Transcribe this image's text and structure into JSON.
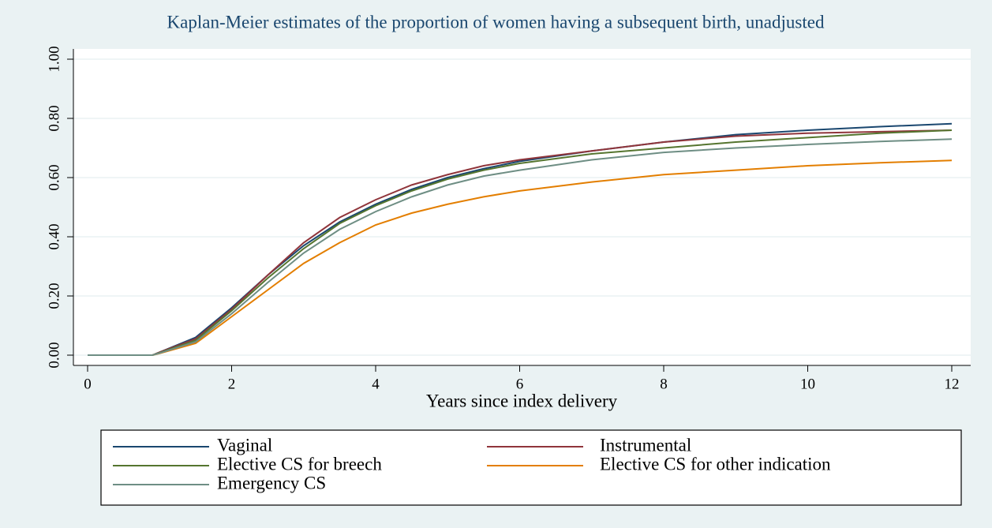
{
  "chart_data": {
    "type": "line",
    "title": "Kaplan-Meier estimates of the proportion of women having a subsequent birth, unadjusted",
    "x_label": "Years since index delivery",
    "x": [
      0,
      0.9,
      1,
      1.5,
      2,
      2.5,
      3,
      3.5,
      4,
      4.5,
      5,
      5.5,
      6,
      7,
      8,
      9,
      10,
      11,
      12
    ],
    "series": [
      {
        "name": "Vaginal",
        "color": "#1a476f",
        "values": [
          0,
          0,
          0.01,
          0.06,
          0.16,
          0.27,
          0.37,
          0.45,
          0.51,
          0.56,
          0.6,
          0.63,
          0.655,
          0.69,
          0.72,
          0.745,
          0.76,
          0.772,
          0.782
        ]
      },
      {
        "name": "Instrumental",
        "color": "#90353b",
        "values": [
          0,
          0,
          0.01,
          0.055,
          0.155,
          0.27,
          0.38,
          0.465,
          0.525,
          0.575,
          0.61,
          0.64,
          0.66,
          0.69,
          0.72,
          0.74,
          0.75,
          0.755,
          0.76
        ]
      },
      {
        "name": "Elective CS for breech",
        "color": "#55752f",
        "values": [
          0,
          0,
          0.008,
          0.05,
          0.15,
          0.26,
          0.36,
          0.445,
          0.505,
          0.555,
          0.595,
          0.625,
          0.648,
          0.68,
          0.7,
          0.72,
          0.735,
          0.75,
          0.76
        ]
      },
      {
        "name": "Elective CS for other indication",
        "color": "#e37e00",
        "values": [
          0,
          0,
          0.006,
          0.04,
          0.13,
          0.22,
          0.31,
          0.38,
          0.44,
          0.48,
          0.51,
          0.535,
          0.555,
          0.585,
          0.61,
          0.625,
          0.64,
          0.65,
          0.658
        ]
      },
      {
        "name": "Emergency CS",
        "color": "#6e8e84",
        "values": [
          0,
          0,
          0.007,
          0.045,
          0.14,
          0.245,
          0.345,
          0.425,
          0.485,
          0.535,
          0.575,
          0.605,
          0.625,
          0.66,
          0.685,
          0.7,
          0.712,
          0.722,
          0.73
        ]
      }
    ],
    "xlim": [
      0,
      12
    ],
    "xticks": [
      0,
      2,
      4,
      6,
      8,
      10,
      12
    ],
    "ylim": [
      0,
      1
    ],
    "yticks": [
      {
        "value": 0,
        "label": "0.00"
      },
      {
        "value": 0.2,
        "label": "0.20"
      },
      {
        "value": 0.4,
        "label": "0.40"
      },
      {
        "value": 0.6,
        "label": "0.60"
      },
      {
        "value": 0.8,
        "label": "0.80"
      },
      {
        "value": 1,
        "label": "1.00"
      }
    ],
    "grid": true
  }
}
